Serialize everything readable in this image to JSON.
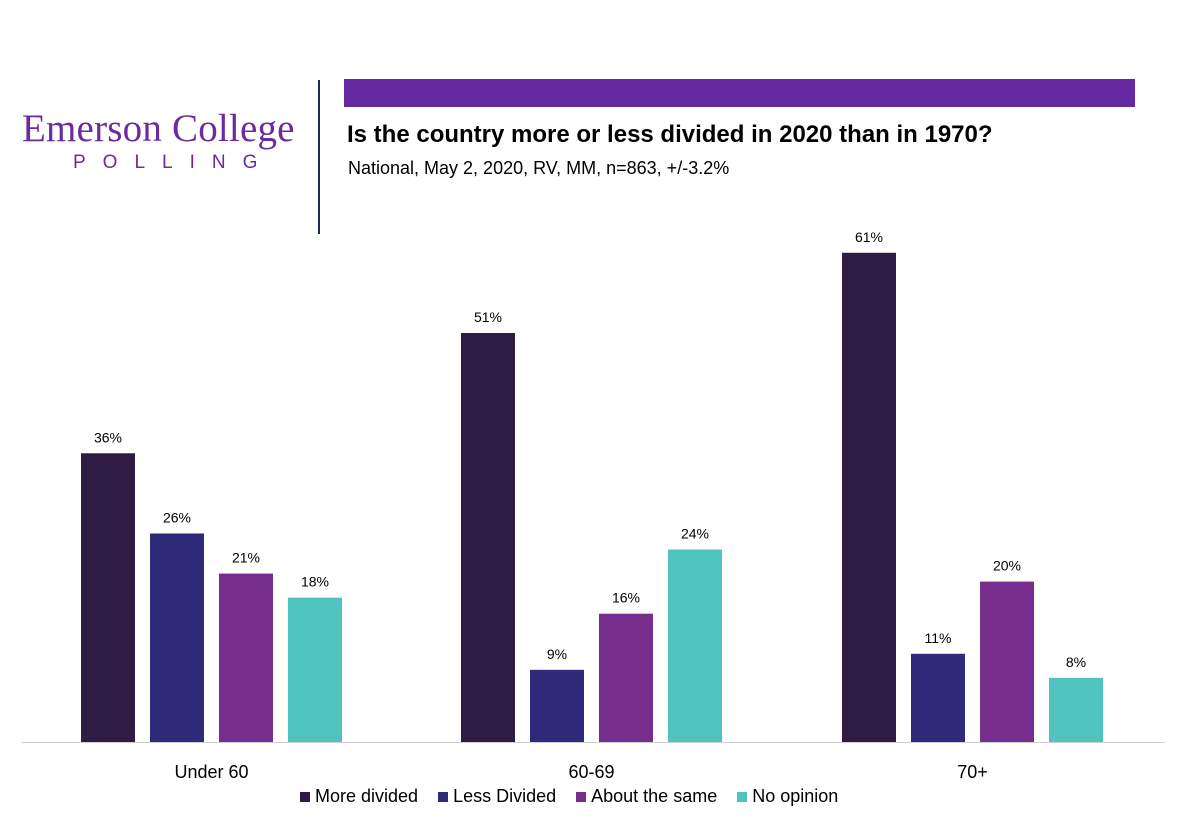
{
  "header": {
    "brand_name": "Emerson College",
    "brand_sub": "POLLING",
    "title": "Is the country more or less divided in 2020 than in 1970?",
    "subtitle": "National, May 2, 2020, RV, MM, n=863, +/-3.2%",
    "accent_color": "#6528a0",
    "brand_color": "#6a2ba0"
  },
  "chart_data": {
    "type": "bar",
    "categories": [
      "Under 60",
      "60-69",
      "70+"
    ],
    "series": [
      {
        "name": "More divided",
        "values": [
          36,
          51,
          61
        ],
        "labels": [
          "36%",
          "51%",
          "61%"
        ],
        "color": "#2e1c42"
      },
      {
        "name": "Less Divided",
        "values": [
          26,
          9,
          11
        ],
        "labels": [
          "26%",
          "9%",
          "11%"
        ],
        "color": "#2f2b7a"
      },
      {
        "name": "About the same",
        "values": [
          21,
          16,
          20
        ],
        "labels": [
          "21%",
          "16%",
          "20%"
        ],
        "color": "#772d8c"
      },
      {
        "name": "No opinion",
        "values": [
          18,
          24,
          8
        ],
        "labels": [
          "18%",
          "24%",
          "8%"
        ],
        "color": "#4fc3bd"
      }
    ],
    "ylim": [
      0,
      65
    ],
    "grid": false,
    "legend": "bottom"
  }
}
